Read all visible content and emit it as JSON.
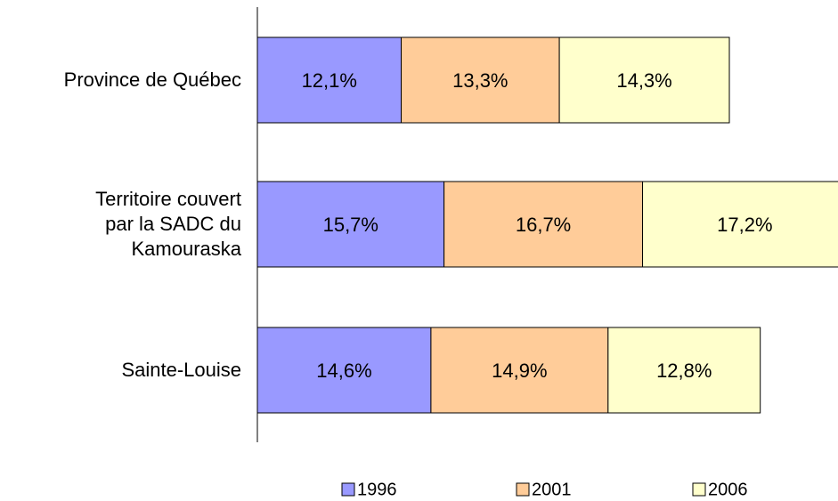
{
  "chart_data": {
    "type": "stacked_barh",
    "categories": [
      "Province de Québec",
      "Territoire couvert\npar la SADC du\nKamouraska",
      "Sainte-Louise"
    ],
    "series": [
      {
        "name": "1996",
        "color": "#9999ff",
        "values": [
          12.1,
          15.7,
          14.6
        ],
        "value_labels": [
          "12,1%",
          "15,7%",
          "14,6%"
        ]
      },
      {
        "name": "2001",
        "color": "#ffcc99",
        "values": [
          13.3,
          16.7,
          14.9
        ],
        "value_labels": [
          "13,3%",
          "16,7%",
          "14,9%"
        ]
      },
      {
        "name": "2006",
        "color": "#ffffcc",
        "values": [
          14.3,
          17.2,
          12.8
        ],
        "value_labels": [
          "14,3%",
          "17,2%",
          "12,8%"
        ]
      }
    ],
    "legend": "bottom"
  }
}
